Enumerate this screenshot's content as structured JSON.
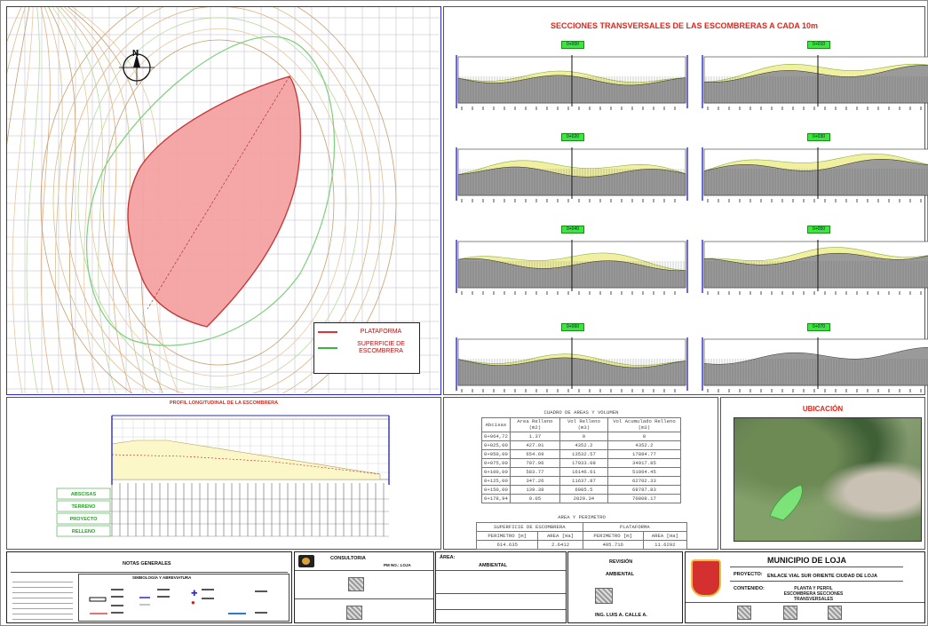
{
  "map": {
    "north_label": "N",
    "legend": [
      {
        "label": "PLATAFORMA",
        "color": "#e03030"
      },
      {
        "label": "SUPERFICIE DE ESCOMBRERA",
        "color": "#3cb43c"
      }
    ]
  },
  "sections": {
    "title": "SECCIONES TRANSVERSALES DE LAS ESCOMBRERAS A CADA 10m",
    "labels": [
      "0+000",
      "0+010",
      "0+020",
      "0+030",
      "0+040",
      "0+050",
      "0+060",
      "0+070"
    ]
  },
  "profile": {
    "title": "PROFIL LONGITUDINAL DE LA ESCOMBRERA",
    "row_labels": [
      "ABSCISAS",
      "TERRENO",
      "PROYECTO",
      "RELLENO"
    ]
  },
  "volume_table": {
    "title": "CUADRO DE AREAS Y VOLUMEN",
    "headers": [
      "Abcisas",
      "Area Relleno (m2)",
      "Vol Relleno (m3)",
      "Vol Acumulado Relleno (m3)"
    ],
    "rows": [
      [
        "0+064,72",
        "1.37",
        "0",
        "0"
      ],
      [
        "0+025,00",
        "427.91",
        "4352.2",
        "4352.2"
      ],
      [
        "0+050,00",
        "654.69",
        "13532.57",
        "17884.77"
      ],
      [
        "0+075,00",
        "707.96",
        "17033.08",
        "34917.85"
      ],
      [
        "0+100,00",
        "583.77",
        "16146.61",
        "51064.45"
      ],
      [
        "0+125,00",
        "347.26",
        "11637.87",
        "62702.33"
      ],
      [
        "0+150,00",
        "139.38",
        "6085.5",
        "68787.83"
      ],
      [
        "0+178,94",
        "0.05",
        "2020.34",
        "70808.17"
      ]
    ]
  },
  "area_table": {
    "title": "AREA Y PERIMETRO",
    "groups": [
      "SUPERFICIE DE ESCOMBRERA",
      "PLATAFORMA"
    ],
    "headers": [
      "PERIMETRO [m]",
      "AREA [Ha]",
      "PERIMETRO [m]",
      "AREA [Ha]"
    ],
    "row": [
      "614.635",
      "2.6412",
      "495.716",
      "11.6292"
    ]
  },
  "location": {
    "title": "UBICACIÓN"
  },
  "title_block": {
    "notes_title": "NOTAS GENERALES",
    "simbology_title": "SIMBOLOGÍA Y ABREVIATURA",
    "consultoria": "CONSULTORIA",
    "consultoria_sub": "PM NO.: LOJA",
    "area_label": "ÁREA:",
    "area_value": "AMBIENTAL",
    "revision_label": "REVISIÓN",
    "revision_value": "AMBIENTAL",
    "reviewer": "ING. LUIS A. CALLE A.",
    "municipio": "MUNICIPIO DE LOJA",
    "project_label": "PROYECTO:",
    "project_value": "ENLACE VIAL SUR ORIENTE CIUDAD DE LOJA",
    "content_label": "CONTENIDO:",
    "content_value": "PLANTA Y PERFIL ESCOMBRERA SECCIONES TRANSVERSALES"
  }
}
